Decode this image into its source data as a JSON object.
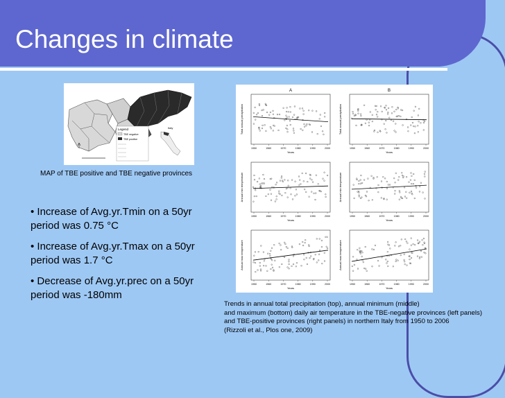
{
  "slide": {
    "title": "Changes in climate",
    "map_caption": "MAP of TBE positive and TBE negative provinces",
    "bullets": [
      "• Increase of Avg.yr.Tmin on a 50yr period  was 0.75 °C",
      "• Increase of Avg.yr.Tmax on a 50yr period was 1.7 °C",
      "• Decrease of Avg.yr.prec on a 50yr period was -180mm"
    ],
    "chart_caption_lines": [
      "Trends in annual total precipitation (top), annual minimum (middle)",
      " and maximum (bottom) daily air temperature  in the TBE-negative provinces (left panels)",
      " and TBE-positive provinces (right panels) in northern Italy from 1950 to 2006",
      "(Rizzoli et al., Plos one, 2009)"
    ],
    "map_legend": {
      "title": "Legend",
      "items": [
        "TBE negative",
        "TBE positive"
      ],
      "inset_label": "Italy"
    },
    "panel_labels": [
      "A",
      "B"
    ],
    "y_axis_labels": [
      "Total annual precipitation",
      "Annual min temperature",
      "Annual max temperature"
    ],
    "x_axis_label": "Years",
    "year_ticks": [
      "1950",
      "1960",
      "1970",
      "1980",
      "1990",
      "2000"
    ]
  },
  "colors": {
    "background": "#9ec8f4",
    "title_bar": "#5e67cf",
    "title_text": "#ffffff",
    "frame_line": "#4a4ea8"
  }
}
